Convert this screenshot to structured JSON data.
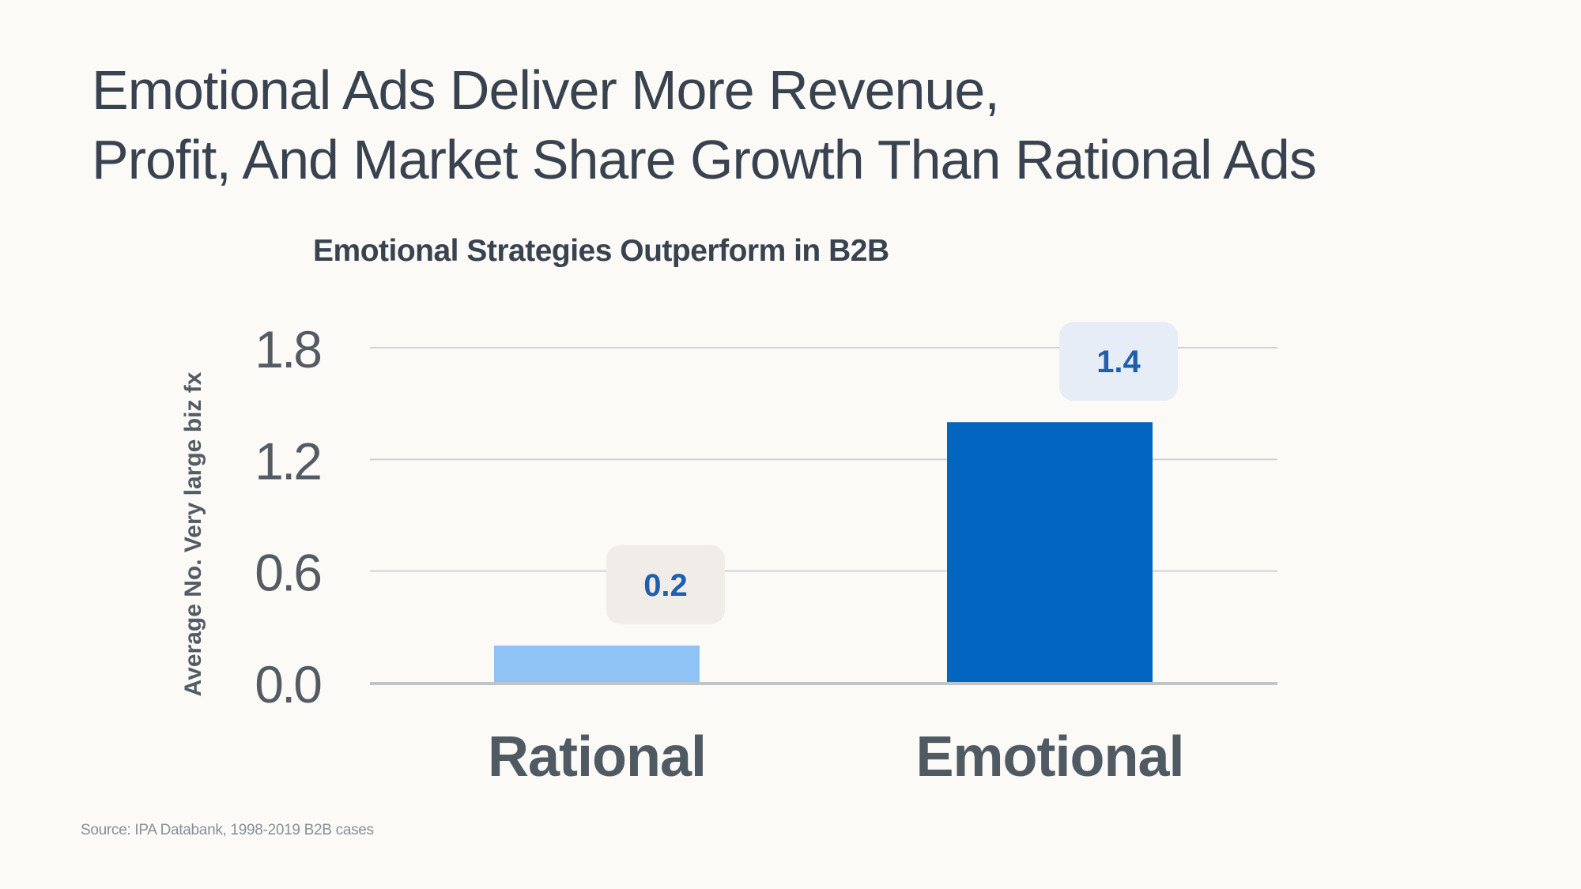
{
  "slide": {
    "title_line1": "Emotional Ads Deliver More Revenue,",
    "title_line2": "Profit, And Market Share Growth Than Rational Ads",
    "source": "Source: IPA Databank, 1998-2019 B2B cases"
  },
  "colors": {
    "text": "#38434f",
    "axis_text": "#555b62",
    "grid": "#cfd2d5",
    "baseline": "#bfc4c8",
    "value_text": "#1f5fad"
  },
  "chart_data": {
    "type": "bar",
    "title": "Emotional Strategies Outperform in B2B",
    "ylabel": "Average No. Very large biz fx",
    "xlabel": "",
    "categories": [
      "Rational",
      "Emotional"
    ],
    "values": [
      0.2,
      1.4
    ],
    "value_labels": [
      "0.2",
      "1.4"
    ],
    "bar_colors": [
      "#8fc2f5",
      "#0266c0"
    ],
    "label_box_colors": [
      "#f0ede8",
      "#e6edf6"
    ],
    "yticks": [
      {
        "value": 0.0,
        "label": "0.0"
      },
      {
        "value": 0.6,
        "label": "0.6"
      },
      {
        "value": 1.2,
        "label": "1.2"
      },
      {
        "value": 1.8,
        "label": "1.8"
      }
    ],
    "ylim": [
      0,
      1.8
    ],
    "grid": true,
    "legend": "none"
  }
}
